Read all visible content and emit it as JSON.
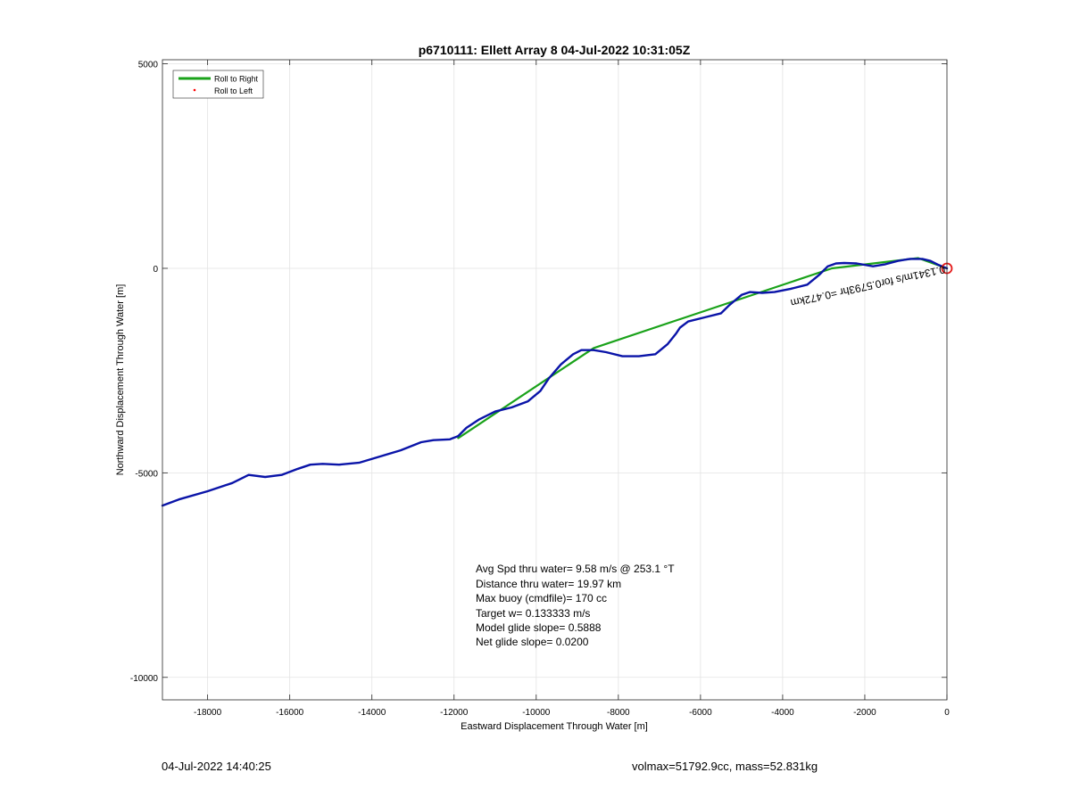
{
  "chart_data": {
    "type": "line",
    "title": "p6710111: Ellett Array 8 04-Jul-2022 10:31:05Z",
    "xlabel": "Eastward Displacement Through Water [m]",
    "ylabel": "Northward Displacement Through Water [m]",
    "xlim": [
      -19100,
      0
    ],
    "ylim": [
      -10550,
      5100
    ],
    "xticks": [
      -18000,
      -16000,
      -14000,
      -12000,
      -10000,
      -8000,
      -6000,
      -4000,
      -2000,
      0
    ],
    "xtick_labels": [
      "-18000",
      "-16000",
      "-14000",
      "-12000",
      "-10000",
      "-8000",
      "-6000",
      "-4000",
      "-2000",
      "0"
    ],
    "yticks": [
      5000,
      0,
      -5000,
      -10000
    ],
    "ytick_labels": [
      "5000",
      "0",
      "-5000",
      "-10000"
    ],
    "grid": true,
    "legend": {
      "placement": "top-left",
      "entries": [
        {
          "label": "Roll to Right",
          "color": "#1aa21a",
          "style": "line"
        },
        {
          "label": "Roll to Left",
          "color": "#ff0000",
          "style": "dot"
        }
      ]
    },
    "series": [
      {
        "name": "Roll to Right",
        "color": "#1aa21a",
        "x": [
          0,
          -700,
          -2800,
          -8600,
          -11900
        ],
        "y": [
          0,
          250,
          0,
          -1950,
          -4150
        ]
      },
      {
        "color": "#0a14a8",
        "x": [
          -19100,
          -18700,
          -18000,
          -17400,
          -17000,
          -16600,
          -16200,
          -15800,
          -15500,
          -15200,
          -14800,
          -14300,
          -13800,
          -13300,
          -12800,
          -12500,
          -12100,
          -11900,
          -11700,
          -11400,
          -11000,
          -10600,
          -10200,
          -9900,
          -9700,
          -9400,
          -9100,
          -8900,
          -8600,
          -8300,
          -7900,
          -7500,
          -7100,
          -6800,
          -6600,
          -6500,
          -6300,
          -5900,
          -5500,
          -5300,
          -5000,
          -4800,
          -4500,
          -4200,
          -3800,
          -3400,
          -3100,
          -2900,
          -2700,
          -2500,
          -2200,
          -1800,
          -1500,
          -1200,
          -900,
          -600,
          -400,
          -200,
          0
        ],
        "y": [
          -5800,
          -5650,
          -5450,
          -5250,
          -5050,
          -5100,
          -5050,
          -4900,
          -4800,
          -4780,
          -4800,
          -4750,
          -4600,
          -4450,
          -4250,
          -4200,
          -4180,
          -4100,
          -3900,
          -3700,
          -3500,
          -3400,
          -3250,
          -3000,
          -2700,
          -2350,
          -2100,
          -2000,
          -2000,
          -2050,
          -2150,
          -2150,
          -2100,
          -1850,
          -1600,
          -1450,
          -1300,
          -1200,
          -1100,
          -900,
          -650,
          -580,
          -600,
          -580,
          -500,
          -400,
          -150,
          50,
          120,
          130,
          120,
          50,
          100,
          180,
          230,
          230,
          180,
          80,
          0
        ]
      }
    ],
    "start_marker": {
      "x": 0,
      "y": 0,
      "color": "#e41a1a"
    },
    "annotations": [
      {
        "text": "Avg Spd thru water=  9.58 m/s @ 253.1 °T"
      },
      {
        "text": "Distance thru water= 19.97 km"
      },
      {
        "text": "Max buoy (cmdfile)= 170 cc"
      },
      {
        "text": "Target w= 0.133333 m/s"
      },
      {
        "text": "Model glide slope= 0.5888"
      },
      {
        "text": "Net glide slope= 0.0200"
      }
    ],
    "rotated_label": {
      "text": "0.1341m/s for0.5793hr =0.472km"
    },
    "footer_left": "04-Jul-2022 14:40:25",
    "footer_right": "volmax=51792.9cc, mass=52.831kg"
  }
}
